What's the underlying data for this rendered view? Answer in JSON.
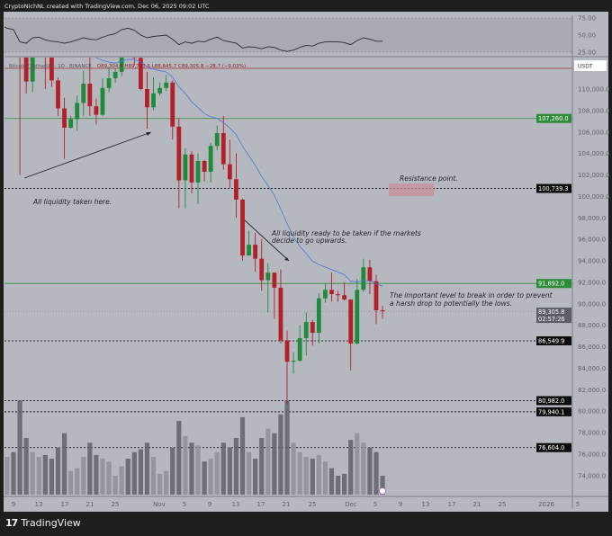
{
  "header": {
    "title": "CryptoNichNL created with TradingView.com, Dec 06, 2025 09:02 UTC"
  },
  "brand": {
    "logo_text": "TradingView",
    "logo_mark": "TV"
  },
  "legend": {
    "symbol": "Bitcoin / TetherUS · 1D · BINANCE",
    "ohlc": "O89,304.4 H89,793.5 L88,645.7 C89,305.8 −28.7 (−0.03%)"
  },
  "price_axis": {
    "currency": "USDT",
    "ticks": [
      "110,000.0",
      "108,000.0",
      "106,000.0",
      "104,000.0",
      "102,000.0",
      "100,000.0",
      "98,000.0",
      "96,000.0",
      "94,000.0",
      "92,000.0",
      "90,000.0",
      "88,000.0",
      "86,000.0",
      "84,000.0",
      "82,000.0",
      "80,000.0",
      "78,000.0",
      "76,000.0",
      "74,000.0"
    ]
  },
  "rsi_axis": {
    "ticks": [
      "75.00",
      "50.00",
      "25.00"
    ]
  },
  "time_axis": {
    "ticks": [
      "9",
      "13",
      "17",
      "21",
      "25",
      "Nov",
      "5",
      "9",
      "13",
      "17",
      "21",
      "25",
      "Dec",
      "5",
      "9",
      "13",
      "17",
      "21",
      "25",
      "2026",
      "5"
    ]
  },
  "levels": [
    {
      "price": 107260.0,
      "label": "107,260.0",
      "style": "solid",
      "color": "#2e8b3a"
    },
    {
      "price": 100739.3,
      "label": "100,739.3",
      "style": "dashed",
      "color": "#000000"
    },
    {
      "price": 91892.0,
      "label": "91,892.0",
      "style": "solid",
      "color": "#2e8b3a"
    },
    {
      "price": 86549.9,
      "label": "86,549.9",
      "style": "dashed",
      "color": "#000000"
    },
    {
      "price": 80982.0,
      "label": "80,982.0",
      "style": "dashed",
      "color": "#000000"
    },
    {
      "price": 79940.1,
      "label": "79,940.1",
      "style": "dashed",
      "color": "#000000"
    },
    {
      "price": 76604.0,
      "label": "76,604.0",
      "style": "dashed",
      "color": "#000000"
    }
  ],
  "current_price": {
    "price": 89305.8,
    "label": "89,305.8",
    "countdown": "02:57:26"
  },
  "annotations": {
    "liquidity_taken": "All liquidity taken here.",
    "resistance": "Resistance point.",
    "liquidity_ready_1": "All liquidity ready to be taken if the markets",
    "liquidity_ready_2": "decide to go upwards.",
    "important_1": "The important level to break in order to prevent",
    "important_2": "a harsh drop to potentially the lows."
  },
  "colors": {
    "up": "#1f8a3a",
    "down": "#b3202a",
    "ma": "#4a78e0",
    "rsi": "#2a2d34",
    "volume": "#6e7077",
    "resistance_box": "#c98f99"
  },
  "chart_data": {
    "type": "candlestick",
    "symbol": "BTC/USDT",
    "start_date": "2025-10-07",
    "ylim": [
      72500,
      113000
    ],
    "rsi_ylim": [
      25,
      75
    ],
    "ohlc": [
      [
        124.7,
        125.1,
        120.6,
        121.4
      ],
      [
        121.4,
        124.1,
        120.6,
        123.3
      ],
      [
        123.3,
        123.7,
        119.6,
        121.7
      ],
      [
        121.7,
        122.5,
        102.0,
        113.2
      ],
      [
        113.2,
        113.4,
        109.6,
        110.7
      ],
      [
        110.7,
        115.8,
        109.7,
        115.2
      ],
      [
        115.2,
        116.0,
        113.0,
        115.3
      ],
      [
        115.3,
        115.4,
        110.0,
        113.0
      ],
      [
        113.0,
        113.6,
        110.2,
        110.8
      ],
      [
        110.8,
        111.1,
        107.5,
        108.2
      ],
      [
        108.2,
        109.2,
        103.5,
        106.4
      ],
      [
        106.4,
        107.5,
        106.3,
        107.2
      ],
      [
        107.2,
        109.4,
        106.1,
        108.7
      ],
      [
        108.7,
        111.7,
        107.5,
        110.5
      ],
      [
        110.5,
        114.0,
        107.5,
        108.4
      ],
      [
        108.4,
        109.1,
        106.7,
        107.6
      ],
      [
        107.6,
        111.0,
        107.5,
        110.1
      ],
      [
        110.1,
        112.0,
        109.7,
        111.0
      ],
      [
        111.0,
        111.9,
        110.6,
        111.6
      ],
      [
        111.6,
        115.4,
        111.2,
        114.5
      ],
      [
        114.5,
        116.4,
        113.9,
        114.1
      ],
      [
        114.1,
        116.1,
        112.2,
        112.9
      ],
      [
        112.9,
        113.6,
        109.9,
        110.0
      ],
      [
        110.0,
        111.6,
        106.3,
        108.3
      ],
      [
        108.3,
        111.1,
        108.0,
        109.6
      ],
      [
        109.6,
        110.6,
        109.4,
        110.1
      ],
      [
        110.1,
        111.3,
        109.8,
        110.6
      ],
      [
        110.6,
        110.8,
        105.3,
        106.5
      ],
      [
        106.5,
        107.3,
        98.9,
        101.5
      ],
      [
        101.5,
        104.5,
        98.9,
        103.9
      ],
      [
        103.9,
        104.2,
        100.3,
        101.3
      ],
      [
        101.3,
        104.0,
        99.3,
        103.3
      ],
      [
        103.3,
        103.4,
        101.4,
        102.3
      ],
      [
        102.3,
        105.0,
        101.3,
        104.7
      ],
      [
        104.7,
        106.6,
        104.3,
        105.9
      ],
      [
        105.9,
        107.5,
        102.5,
        103.0
      ],
      [
        103.0,
        105.3,
        100.8,
        101.6
      ],
      [
        101.6,
        104.0,
        98.0,
        99.7
      ],
      [
        99.7,
        99.8,
        94.0,
        94.5
      ],
      [
        94.5,
        96.8,
        94.5,
        95.5
      ],
      [
        95.5,
        96.6,
        93.0,
        94.2
      ],
      [
        94.2,
        96.0,
        91.2,
        92.2
      ],
      [
        92.2,
        93.8,
        89.2,
        92.9
      ],
      [
        92.9,
        92.9,
        88.6,
        91.5
      ],
      [
        91.5,
        93.2,
        86.3,
        86.6
      ],
      [
        86.6,
        87.5,
        80.6,
        84.6
      ],
      [
        84.6,
        85.5,
        83.5,
        84.7
      ],
      [
        84.7,
        88.0,
        84.6,
        86.8
      ],
      [
        86.8,
        89.2,
        85.2,
        88.3
      ],
      [
        88.3,
        88.5,
        86.1,
        87.3
      ],
      [
        87.3,
        91.0,
        86.3,
        90.5
      ],
      [
        90.5,
        91.9,
        90.1,
        91.3
      ],
      [
        91.3,
        92.9,
        90.2,
        90.9
      ],
      [
        90.9,
        91.2,
        90.2,
        90.8
      ],
      [
        90.8,
        92.0,
        90.3,
        90.4
      ],
      [
        90.4,
        90.4,
        83.8,
        86.3
      ],
      [
        86.3,
        92.3,
        86.2,
        91.3
      ],
      [
        91.3,
        94.2,
        91.1,
        93.4
      ],
      [
        93.4,
        94.1,
        90.9,
        92.1
      ],
      [
        92.1,
        92.7,
        88.1,
        89.4
      ],
      [
        89.4,
        89.8,
        88.6,
        89.3
      ]
    ],
    "ohlc_unit": "thousand USDT",
    "volume": [
      55,
      40,
      45,
      100,
      60,
      45,
      40,
      42,
      38,
      50,
      65,
      25,
      28,
      40,
      55,
      42,
      38,
      35,
      20,
      30,
      38,
      45,
      48,
      55,
      40,
      22,
      25,
      50,
      78,
      62,
      55,
      52,
      35,
      38,
      45,
      55,
      50,
      60,
      82,
      45,
      38,
      60,
      70,
      65,
      85,
      100,
      55,
      45,
      40,
      38,
      42,
      35,
      28,
      20,
      22,
      58,
      65,
      55,
      50,
      45,
      20
    ],
    "rsi": [
      62,
      60,
      58,
      40,
      38,
      46,
      47,
      43,
      41,
      40,
      38,
      40,
      43,
      46,
      44,
      43,
      47,
      50,
      52,
      58,
      60,
      57,
      50,
      46,
      48,
      49,
      50,
      44,
      36,
      40,
      38,
      41,
      40,
      44,
      47,
      42,
      40,
      38,
      31,
      33,
      32,
      30,
      33,
      32,
      28,
      26,
      28,
      32,
      35,
      34,
      38,
      40,
      40,
      40,
      39,
      36,
      42,
      46,
      44,
      41,
      41
    ]
  }
}
